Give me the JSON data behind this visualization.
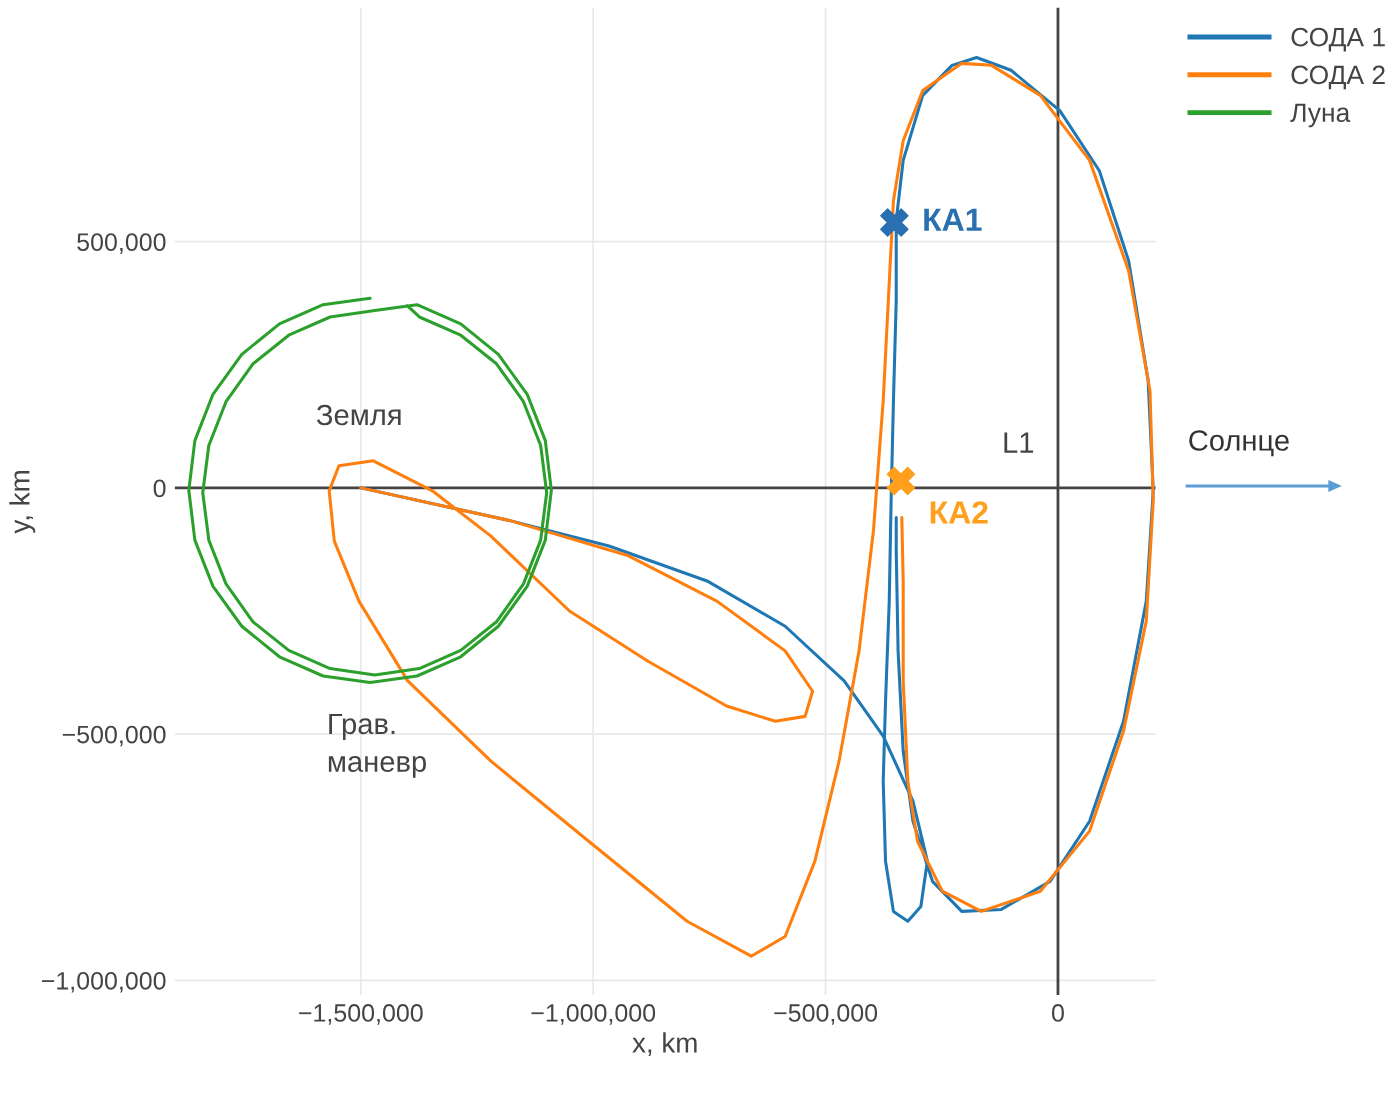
{
  "chart_data": {
    "type": "line",
    "xlabel": "x, km",
    "ylabel": "y, km",
    "xlim": [
      -1900000,
      210000
    ],
    "ylim": [
      -1030000,
      975000
    ],
    "xticks": [
      {
        "value": -1500000,
        "label": "−1,500,000"
      },
      {
        "value": -1000000,
        "label": "−1,000,000"
      },
      {
        "value": -500000,
        "label": "−500,000"
      },
      0
    ],
    "yticks": [
      {
        "value": -1000000,
        "label": "−1,000,000"
      },
      {
        "value": -500000,
        "label": "−500,000"
      },
      0,
      {
        "value": 500000,
        "label": "500,000"
      }
    ],
    "grid": true,
    "legend": "top right",
    "line_style": "solid",
    "series": [
      {
        "name": "СОДА 1",
        "color": "#1f77b4",
        "x": [
          -1500000,
          -1177000,
          -966000,
          -755000,
          -587000,
          -460000,
          -376000,
          -312000,
          -281000,
          -295000,
          -323000,
          -354000,
          -371000,
          -376000,
          -371000,
          -363000,
          -359000,
          -354000,
          -348000,
          -348000,
          -333000,
          -291000,
          -228000,
          -175000,
          -101000,
          4000,
          89000,
          152000,
          194000,
          205000,
          190000,
          141000,
          68000,
          -17000,
          -122000,
          -207000,
          -270000,
          -312000,
          -333000,
          -344000,
          -348000,
          -348000
        ],
        "values": [
          0,
          -67000,
          -118000,
          -189000,
          -281000,
          -392000,
          -504000,
          -636000,
          -758000,
          -850000,
          -880000,
          -860000,
          -758000,
          -596000,
          -433000,
          -230000,
          -26000,
          177000,
          380000,
          543000,
          665000,
          797000,
          858000,
          874000,
          848000,
          766000,
          644000,
          461000,
          218000,
          -6000,
          -230000,
          -474000,
          -677000,
          -799000,
          -856000,
          -860000,
          -799000,
          -677000,
          -535000,
          -331000,
          -128000,
          -60000
        ]
      },
      {
        "name": "СОДА 2",
        "color": "#ff7f0e",
        "x": [
          -1500000,
          -1177000,
          -924000,
          -734000,
          -587000,
          -528000,
          -544000,
          -608000,
          -713000,
          -882000,
          -1051000,
          -1220000,
          -1346000,
          -1473000,
          -1547000,
          -1568000,
          -1557000,
          -1504000,
          -1399000,
          -1220000,
          -1009000,
          -798000,
          -660000,
          -587000,
          -523000,
          -471000,
          -428000,
          -397000,
          -376000,
          -365000,
          -354000,
          -333000,
          -291000,
          -207000,
          -143000,
          -38000,
          68000,
          152000,
          198000,
          205000,
          190000,
          141000,
          68000,
          -38000,
          -165000,
          -249000,
          -302000,
          -323000,
          -333000,
          -333000,
          -336000
        ],
        "values": [
          0,
          -67000,
          -138000,
          -230000,
          -331000,
          -413000,
          -464000,
          -474000,
          -443000,
          -352000,
          -250000,
          -98000,
          -6000,
          55000,
          45000,
          -6000,
          -108000,
          -230000,
          -392000,
          -555000,
          -718000,
          -880000,
          -951000,
          -911000,
          -758000,
          -555000,
          -331000,
          -87000,
          177000,
          380000,
          583000,
          705000,
          807000,
          862000,
          858000,
          797000,
          665000,
          441000,
          197000,
          -26000,
          -270000,
          -494000,
          -697000,
          -819000,
          -860000,
          -819000,
          -718000,
          -596000,
          -392000,
          -189000,
          -60000
        ]
      },
      {
        "name": "Луна",
        "color": "#2ca02c",
        "x": [
          -1480000,
          -1581000,
          -1675000,
          -1756000,
          -1818000,
          -1857000,
          -1870000,
          -1857000,
          -1818000,
          -1756000,
          -1675000,
          -1581000,
          -1480000,
          -1379000,
          -1285000,
          -1204000,
          -1142000,
          -1103000,
          -1090000,
          -1103000,
          -1142000,
          -1204000,
          -1285000,
          -1379000,
          -1470000,
          -1566000,
          -1655000,
          -1732000,
          -1790000,
          -1827000,
          -1840000,
          -1827000,
          -1790000,
          -1732000,
          -1655000,
          -1566000,
          -1470000,
          -1374000,
          -1285000,
          -1208000,
          -1150000,
          -1113000,
          -1100000,
          -1113000,
          -1150000,
          -1208000,
          -1285000,
          -1374000,
          -1400000
        ],
        "values": [
          385000,
          372000,
          333000,
          271000,
          190000,
          96000,
          -5000,
          -106000,
          -200000,
          -281000,
          -343000,
          -382000,
          -395000,
          -382000,
          -343000,
          -281000,
          -200000,
          -106000,
          -5000,
          96000,
          190000,
          271000,
          333000,
          372000,
          360000,
          347000,
          310000,
          252000,
          175000,
          86000,
          -10000,
          -106000,
          -195000,
          -272000,
          -330000,
          -367000,
          -380000,
          -367000,
          -330000,
          -272000,
          -195000,
          -106000,
          -10000,
          86000,
          175000,
          252000,
          310000,
          347000,
          370000
        ]
      },
      {
        "name": "КА1",
        "type": "scatter",
        "marker": "cross",
        "color": "#2a6fb0",
        "x": [
          -352000
        ],
        "values": [
          539000
        ]
      },
      {
        "name": "КА2",
        "type": "scatter",
        "marker": "cross",
        "color": "#ff9f1c",
        "x": [
          -338000
        ],
        "values": [
          14000
        ]
      }
    ],
    "annotations": [
      "Земля",
      "Грав.\nманевр",
      "L1",
      "Солнце"
    ]
  }
}
